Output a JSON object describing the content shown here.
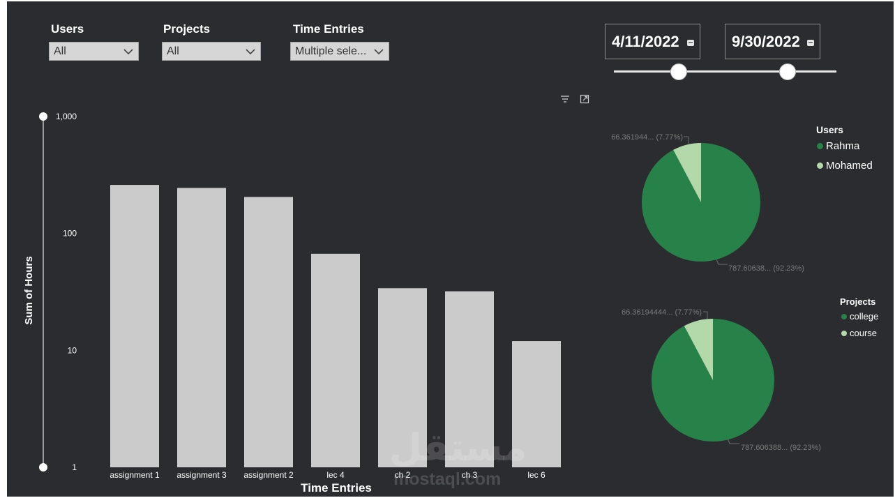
{
  "filters": {
    "users": {
      "title": "Users",
      "value": "All"
    },
    "projects": {
      "title": "Projects",
      "value": "All"
    },
    "time_entries": {
      "title": "Time Entries",
      "value": "Multiple sele..."
    }
  },
  "date_range": {
    "start": "4/11/2022",
    "end": "9/30/2022",
    "start_fraction": 0.29,
    "end_fraction": 0.78
  },
  "colors": {
    "background": "#2b2c30",
    "bar": "#cbcbcb",
    "dark_green": "#27824a",
    "light_green": "#b3d9ab"
  },
  "chart_data": [
    {
      "type": "bar",
      "title": "",
      "xlabel": "Time Entries",
      "ylabel": "Sum of Hours",
      "yscale": "log",
      "ylim": [
        1,
        1000
      ],
      "yticks": [
        {
          "value": 1,
          "label": "1"
        },
        {
          "value": 10,
          "label": "10"
        },
        {
          "value": 100,
          "label": "100"
        },
        {
          "value": 1000,
          "label": "1,000"
        }
      ],
      "categories": [
        "assignment 1",
        "assignment 3",
        "assignment 2",
        "lec 4",
        "ch 2",
        "ch 3",
        "lec 6"
      ],
      "values": [
        260,
        245,
        205,
        67,
        34,
        32,
        12
      ]
    },
    {
      "type": "pie",
      "legend_title": "Users",
      "slices": [
        {
          "name": "Rahma",
          "value": 787.60638,
          "percent": 92.23,
          "color": "#27824a",
          "label": "787.60638... (92.23%)"
        },
        {
          "name": "Mohamed",
          "value": 66.361944,
          "percent": 7.77,
          "color": "#b3d9ab",
          "label": "66.361944... (7.77%)"
        }
      ]
    },
    {
      "type": "pie",
      "legend_title": "Projects",
      "slices": [
        {
          "name": "college",
          "value": 787.606388,
          "percent": 92.23,
          "color": "#27824a",
          "label": "787.606388... (92.23%)"
        },
        {
          "name": "course",
          "value": 66.36194444,
          "percent": 7.77,
          "color": "#b3d9ab",
          "label": "66.36194444... (7.77%)"
        }
      ]
    }
  ],
  "watermark": {
    "arabic": "مستقل",
    "latin": "mostaql.com"
  }
}
